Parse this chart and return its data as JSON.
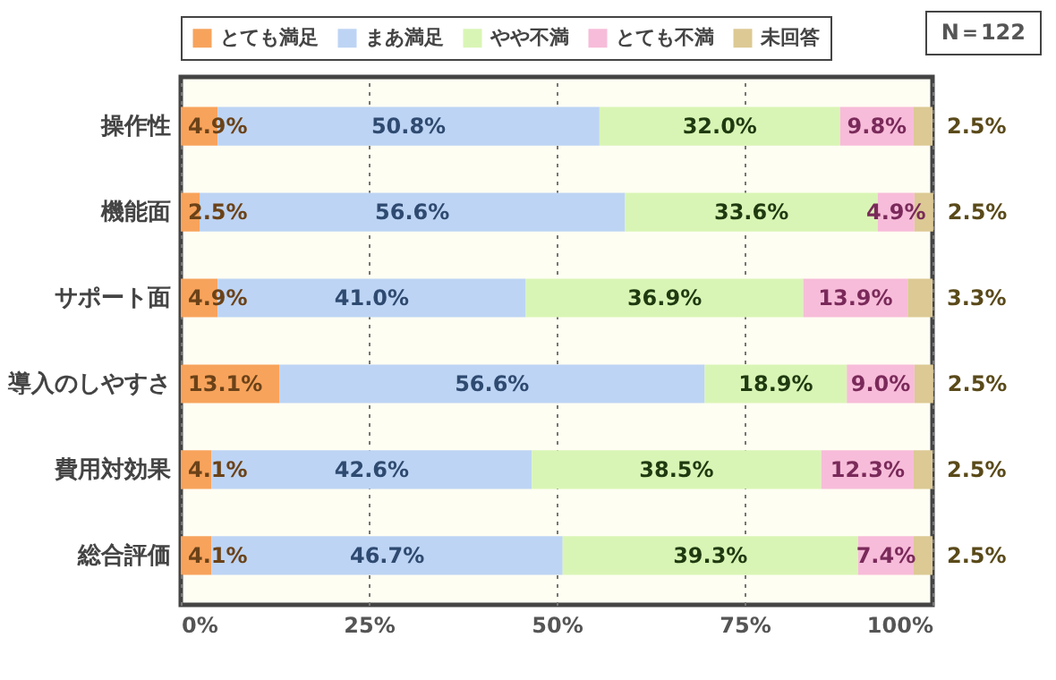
{
  "chart_data": {
    "type": "bar",
    "orientation": "horizontal",
    "stacked": true,
    "legend": "top",
    "grid": "x",
    "categories": [
      "操作性",
      "機能面",
      "サポート面",
      "導入のしやすさ",
      "費用対効果",
      "総合評価"
    ],
    "series": [
      {
        "name": "とても満足",
        "color": "#f7a35c",
        "values": [
          4.9,
          2.5,
          4.9,
          13.1,
          4.1,
          4.1
        ],
        "value_labels": [
          "4.9%",
          "2.5%",
          "4.9%",
          "13.1%",
          "4.1%",
          "4.1%"
        ]
      },
      {
        "name": "まあ満足",
        "color": "#bdd4f4",
        "values": [
          50.8,
          56.6,
          41.0,
          56.6,
          42.6,
          46.7
        ],
        "value_labels": [
          "50.8%",
          "56.6%",
          "41.0%",
          "56.6%",
          "42.6%",
          "46.7%"
        ]
      },
      {
        "name": "やや不満",
        "color": "#d9f5b5",
        "values": [
          32.0,
          33.6,
          36.9,
          18.9,
          38.5,
          39.3
        ],
        "value_labels": [
          "32.0%",
          "33.6%",
          "36.9%",
          "18.9%",
          "38.5%",
          "39.3%"
        ]
      },
      {
        "name": "とても不満",
        "color": "#f7bcd9",
        "values": [
          9.8,
          4.9,
          13.9,
          9.0,
          12.3,
          7.4
        ],
        "value_labels": [
          "9.8%",
          "4.9%",
          "13.9%",
          "9.0%",
          "12.3%",
          "7.4%"
        ]
      },
      {
        "name": "未回答",
        "color": "#dcc994",
        "values": [
          2.5,
          2.5,
          3.3,
          2.5,
          2.5,
          2.5
        ],
        "value_labels": [
          "2.5%",
          "2.5%",
          "3.3%",
          "2.5%",
          "2.5%",
          "2.5%"
        ]
      }
    ],
    "xlim": [
      0,
      100
    ],
    "xticks": [
      {
        "value": 0,
        "label": "0%"
      },
      {
        "value": 25,
        "label": "25%"
      },
      {
        "value": 50,
        "label": "50%"
      },
      {
        "value": 75,
        "label": "75%"
      },
      {
        "value": 100,
        "label": "100%"
      }
    ],
    "annotations": [
      "N＝122"
    ]
  }
}
